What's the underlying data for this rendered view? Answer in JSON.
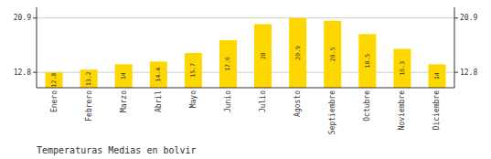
{
  "chart_data": {
    "type": "bar",
    "title": "Temperaturas Medias en bolvir",
    "categories": [
      "Enero",
      "Febrero",
      "Marzo",
      "Abril",
      "Mayo",
      "Junio",
      "Julio",
      "Agosto",
      "Septiembre",
      "Octubre",
      "Noviembre",
      "Diciembre"
    ],
    "values": [
      12.8,
      13.2,
      14.0,
      14.4,
      15.7,
      17.6,
      20.0,
      20.9,
      20.5,
      18.5,
      16.3,
      14.0
    ],
    "color": "#FFD700",
    "ylim": [
      10.5,
      22.5
    ],
    "yticks": [
      12.8,
      20.9
    ],
    "grid": true,
    "data_labels": true
  }
}
